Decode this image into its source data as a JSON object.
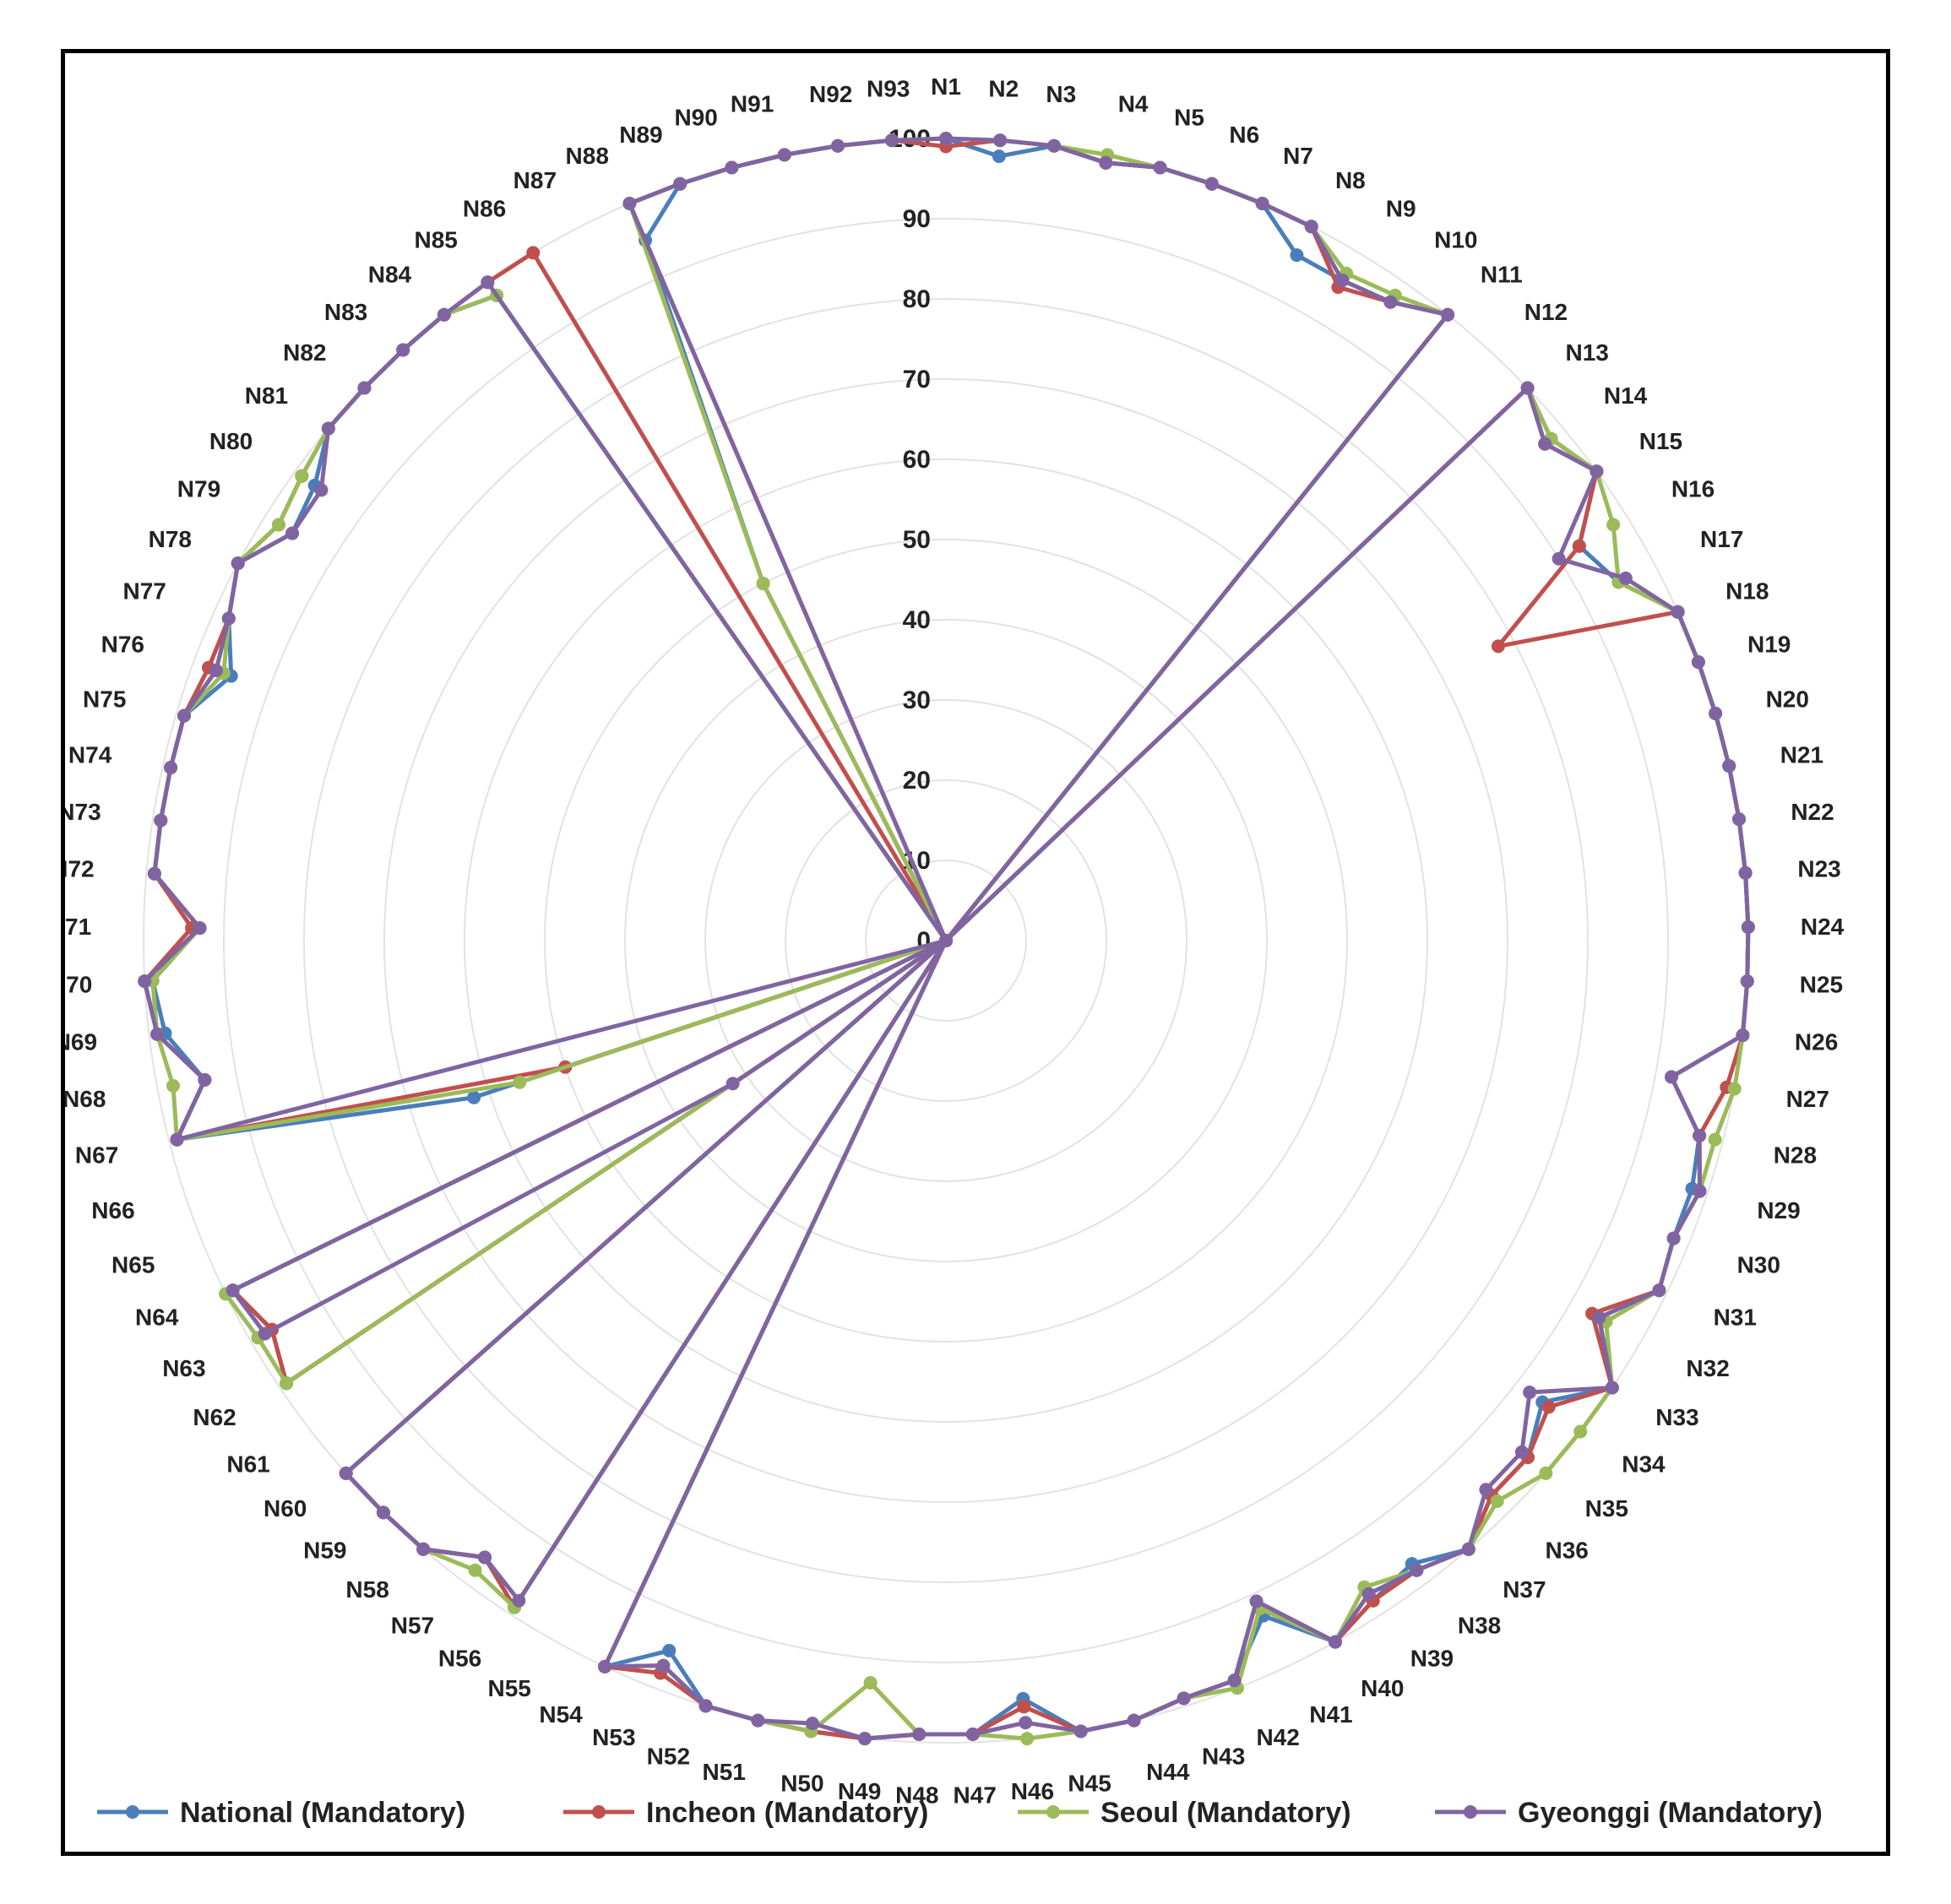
{
  "chart_data": {
    "type": "radar",
    "title": "",
    "r_range": [
      0,
      100
    ],
    "r_ticks": [
      "0",
      "10",
      "20",
      "30",
      "40",
      "50",
      "60",
      "70",
      "80",
      "90",
      "100"
    ],
    "categories": [
      "N1",
      "N2",
      "N3",
      "N4",
      "N5",
      "N6",
      "N7",
      "N8",
      "N9",
      "N10",
      "N11",
      "N12",
      "N13",
      "N14",
      "N15",
      "N16",
      "N17",
      "N18",
      "N19",
      "N20",
      "N21",
      "N22",
      "N23",
      "N24",
      "N25",
      "N26",
      "N27",
      "N28",
      "N29",
      "N30",
      "N31",
      "N32",
      "N33",
      "N34",
      "N35",
      "N36",
      "N37",
      "N38",
      "N39",
      "N40",
      "N41",
      "N42",
      "N43",
      "N44",
      "N45",
      "N46",
      "N47",
      "N48",
      "N49",
      "N50",
      "N51",
      "N52",
      "N53",
      "N54",
      "N55",
      "N56",
      "N57",
      "N58",
      "N59",
      "N60",
      "N61",
      "N62",
      "N63",
      "N64",
      "N65",
      "N66",
      "N67",
      "N68",
      "N69",
      "N70",
      "N71",
      "N72",
      "N73",
      "N74",
      "N75",
      "N76",
      "N77",
      "N78",
      "N79",
      "N80",
      "N81",
      "N82",
      "N83",
      "N84",
      "N85",
      "N86",
      "N87",
      "N88",
      "N89",
      "N90",
      "N91",
      "N92",
      "N93"
    ],
    "series": [
      {
        "name": "National (Mandatory)",
        "color": "#4a7ebb",
        "values": [
          100,
          98,
          100,
          99,
          100,
          100,
          100,
          96,
          96,
          97,
          100,
          0,
          100,
          98,
          100,
          93,
          95,
          100,
          100,
          100,
          100,
          100,
          100,
          100,
          100,
          100,
          92,
          97,
          98,
          98,
          99,
          94,
          100,
          94,
          97,
          97,
          100,
          97,
          98,
          100,
          93,
          99,
          99,
          100,
          100,
          95,
          99,
          99,
          100,
          100,
          100,
          100,
          95,
          100,
          0,
          99,
          96,
          100,
          100,
          100,
          0,
          99,
          97,
          99,
          0,
          62,
          99,
          94,
          98,
          99,
          93,
          99,
          99,
          99,
          99,
          95,
          98,
          100,
          96,
          97,
          100,
          100,
          100,
          100,
          98,
          0,
          50,
          95,
          100,
          100,
          100,
          100,
          100
        ]
      },
      {
        "name": "Incheon (Mandatory)",
        "color": "#c0504d",
        "values": [
          99,
          100,
          100,
          99,
          100,
          100,
          100,
          100,
          95,
          97,
          100,
          0,
          100,
          97,
          100,
          93,
          78,
          100,
          100,
          100,
          100,
          100,
          100,
          100,
          100,
          100,
          99,
          97,
          99,
          98,
          99,
          93,
          100,
          95,
          97,
          97,
          100,
          98,
          98,
          100,
          91,
          99,
          99,
          100,
          100,
          96,
          99,
          99,
          100,
          100,
          100,
          100,
          98,
          100,
          0,
          99,
          96,
          100,
          100,
          100,
          0,
          99,
          97,
          99,
          0,
          50,
          99,
          94,
          99,
          100,
          94,
          99,
          99,
          99,
          99,
          98,
          98,
          100,
          98,
          99,
          100,
          100,
          100,
          100,
          100,
          100,
          0,
          100,
          100,
          100,
          100,
          100,
          100
        ]
      },
      {
        "name": "Seoul (Mandatory)",
        "color": "#9bbb59",
        "values": [
          100,
          100,
          100,
          100,
          100,
          100,
          100,
          100,
          97,
          98,
          100,
          0,
          100,
          98,
          100,
          98,
          95,
          100,
          100,
          100,
          100,
          100,
          100,
          100,
          100,
          100,
          100,
          99,
          99,
          98,
          99,
          95,
          100,
          100,
          100,
          98,
          100,
          98,
          96,
          100,
          92,
          100,
          99,
          100,
          100,
          100,
          99,
          99,
          93,
          100,
          100,
          100,
          97,
          100,
          0,
          99,
          98,
          100,
          100,
          100,
          0,
          99,
          99,
          100,
          0,
          56,
          99,
          98,
          99,
          99,
          93,
          99,
          99,
          99,
          99,
          96,
          98,
          100,
          98,
          99,
          100,
          100,
          100,
          100,
          98,
          0,
          50,
          100,
          100,
          100,
          100,
          100,
          100
        ]
      },
      {
        "name": "Gyeonggi (Mandatory)",
        "color": "#8064a2",
        "values": [
          100,
          100,
          100,
          99,
          100,
          100,
          100,
          100,
          96,
          97,
          100,
          0,
          100,
          97,
          100,
          90,
          96,
          100,
          100,
          100,
          100,
          100,
          100,
          100,
          100,
          100,
          92,
          97,
          99,
          98,
          99,
          94,
          100,
          92,
          96,
          96,
          100,
          98,
          97,
          100,
          91,
          99,
          99,
          100,
          100,
          98,
          99,
          99,
          100,
          99,
          100,
          100,
          97,
          100,
          0,
          98,
          96,
          100,
          100,
          100,
          0,
          32,
          98,
          99,
          0,
          0,
          99,
          94,
          99,
          100,
          93,
          99,
          99,
          99,
          99,
          97,
          98,
          100,
          96,
          96,
          100,
          100,
          100,
          100,
          100,
          0,
          0,
          100,
          100,
          100,
          100,
          100,
          100
        ]
      }
    ],
    "legend_position": "bottom"
  }
}
